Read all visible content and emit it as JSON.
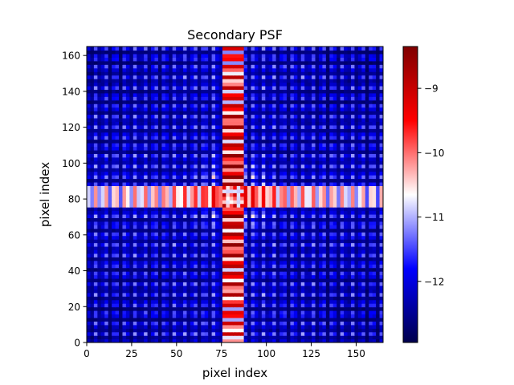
{
  "chart_data": {
    "type": "heatmap",
    "title": "Secondary PSF",
    "xlabel": "pixel index",
    "ylabel": "pixel index",
    "xlim": [
      0,
      165
    ],
    "ylim": [
      0,
      165
    ],
    "xticks": [
      0,
      25,
      50,
      75,
      100,
      125,
      150
    ],
    "yticks": [
      0,
      20,
      40,
      60,
      80,
      100,
      120,
      140,
      160
    ],
    "colorbar": {
      "range": [
        -12.95,
        -8.35
      ],
      "ticks": [
        -9,
        -10,
        -11,
        -12
      ],
      "tick_labels": [
        "−9",
        "−10",
        "−11",
        "−12"
      ],
      "colormap": "seismic"
    },
    "center": [
      82,
      82
    ],
    "cross_arm_half_width": 6,
    "grid": false
  },
  "colors": {
    "low": "#00004c",
    "mid": "#ffffff",
    "high": "#7f0000"
  }
}
